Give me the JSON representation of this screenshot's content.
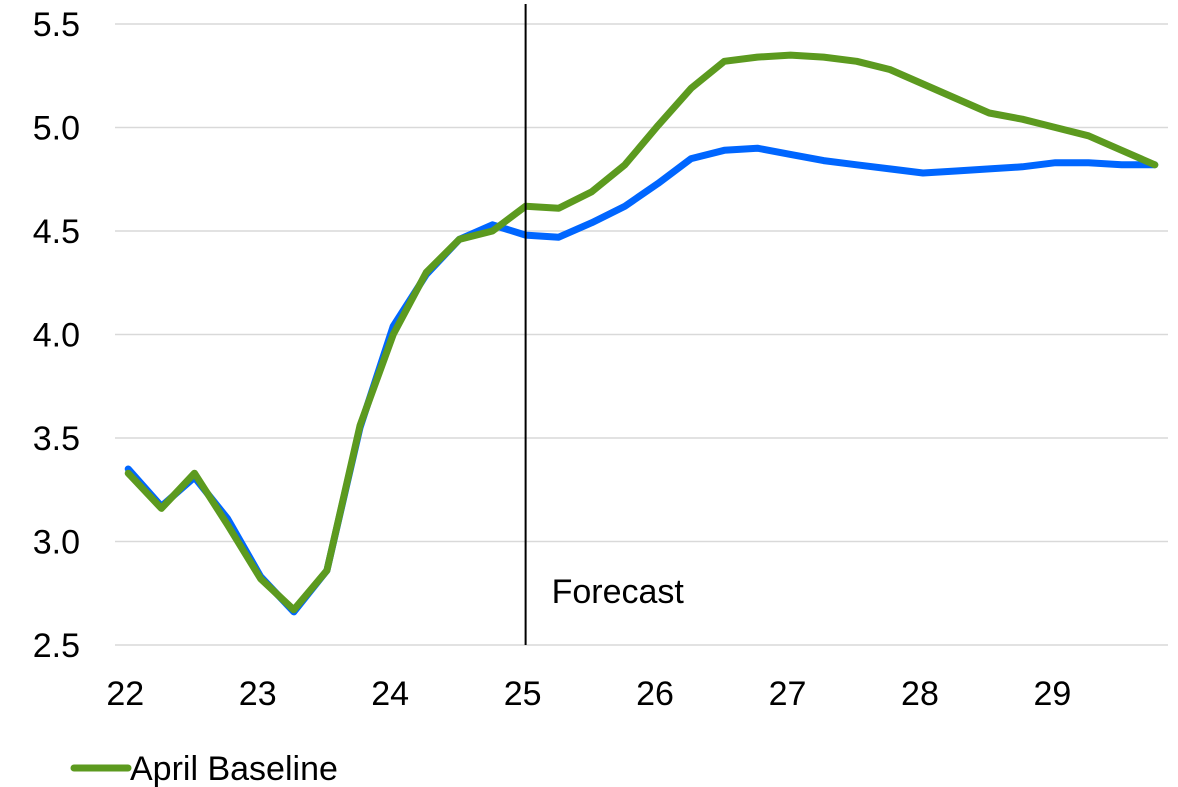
{
  "chart_data": {
    "type": "line",
    "title": "",
    "xlabel": "",
    "ylabel": "",
    "xlim": [
      22,
      29.85
    ],
    "ylim": [
      2.5,
      5.5
    ],
    "grid": true,
    "legend_position": "bottom-left",
    "xticks": [
      22,
      23,
      24,
      25,
      26,
      27,
      28,
      29
    ],
    "xtick_labels": [
      "22",
      "23",
      "24",
      "25",
      "26",
      "27",
      "28",
      "29"
    ],
    "yticks": [
      2.5,
      3.0,
      3.5,
      4.0,
      4.5,
      5.0,
      5.5
    ],
    "ytick_labels": [
      "2.5",
      "3.0",
      "3.5",
      "4.0",
      "4.5",
      "5.0",
      "5.5"
    ],
    "annotations": [
      {
        "text": "Forecast",
        "x": 25,
        "y": 2.76
      }
    ],
    "forecast_x": 25,
    "x": [
      22.0,
      22.25,
      22.5,
      22.75,
      23.0,
      23.25,
      23.5,
      23.75,
      24.0,
      24.25,
      24.5,
      24.75,
      25.0,
      25.25,
      25.5,
      25.75,
      26.0,
      26.25,
      26.5,
      26.75,
      27.0,
      27.25,
      27.5,
      27.75,
      28.0,
      28.25,
      28.5,
      28.75,
      29.0,
      29.25,
      29.5,
      29.75
    ],
    "series": [
      {
        "color": "#0066ff",
        "in_legend": false,
        "values": [
          3.35,
          3.17,
          3.31,
          3.11,
          2.83,
          2.66,
          2.86,
          3.55,
          4.04,
          4.29,
          4.46,
          4.53,
          4.48,
          4.47,
          4.54,
          4.62,
          4.73,
          4.85,
          4.89,
          4.9,
          4.87,
          4.84,
          4.82,
          4.8,
          4.78,
          4.79,
          4.8,
          4.81,
          4.83,
          4.83,
          4.82,
          4.82
        ]
      },
      {
        "name": "April Baseline",
        "color": "#5c9a1f",
        "in_legend": true,
        "values": [
          3.33,
          3.16,
          3.33,
          3.08,
          2.82,
          2.67,
          2.86,
          3.56,
          4.0,
          4.3,
          4.46,
          4.5,
          4.62,
          4.61,
          4.69,
          4.82,
          5.01,
          5.19,
          5.32,
          5.34,
          5.35,
          5.34,
          5.32,
          5.28,
          5.21,
          5.14,
          5.07,
          5.04,
          5.0,
          4.96,
          4.89,
          4.82
        ]
      }
    ]
  }
}
